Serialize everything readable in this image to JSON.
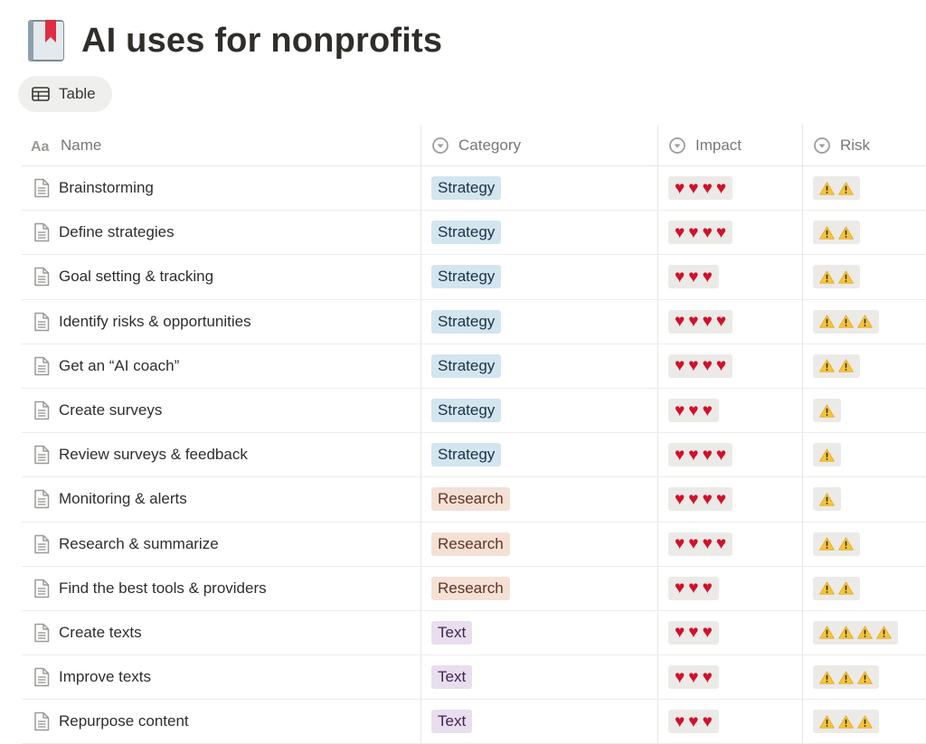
{
  "page": {
    "title": "AI uses for nonprofits",
    "icon": "book-bookmark-icon"
  },
  "views": [
    {
      "label": "Table",
      "icon": "table-icon"
    }
  ],
  "columns": {
    "name": {
      "label": "Name",
      "icon": "text-property-icon"
    },
    "category": {
      "label": "Category",
      "icon": "select-property-icon"
    },
    "impact": {
      "label": "Impact",
      "icon": "select-property-icon"
    },
    "risk": {
      "label": "Risk",
      "icon": "select-property-icon"
    }
  },
  "category_colors": {
    "Strategy": {
      "bg": "#d3e5ef",
      "fg": "#183347"
    },
    "Research": {
      "bg": "#f5e0d6",
      "fg": "#5d3424"
    },
    "Text": {
      "bg": "#e8deee",
      "fg": "#412454"
    }
  },
  "heart_color": "#d0112b",
  "rows": [
    {
      "name": "Brainstorming",
      "category": "Strategy",
      "impact": 4,
      "risk": 2
    },
    {
      "name": "Define strategies",
      "category": "Strategy",
      "impact": 4,
      "risk": 2
    },
    {
      "name": "Goal setting & tracking",
      "category": "Strategy",
      "impact": 3,
      "risk": 2
    },
    {
      "name": "Identify risks & opportunities",
      "category": "Strategy",
      "impact": 4,
      "risk": 3
    },
    {
      "name": "Get an “AI coach”",
      "category": "Strategy",
      "impact": 4,
      "risk": 2
    },
    {
      "name": "Create surveys",
      "category": "Strategy",
      "impact": 3,
      "risk": 1
    },
    {
      "name": "Review surveys & feedback",
      "category": "Strategy",
      "impact": 4,
      "risk": 1
    },
    {
      "name": "Monitoring & alerts",
      "category": "Research",
      "impact": 4,
      "risk": 1
    },
    {
      "name": "Research & summarize",
      "category": "Research",
      "impact": 4,
      "risk": 2
    },
    {
      "name": "Find the best tools & providers",
      "category": "Research",
      "impact": 3,
      "risk": 2
    },
    {
      "name": "Create texts",
      "category": "Text",
      "impact": 3,
      "risk": 4
    },
    {
      "name": "Improve texts",
      "category": "Text",
      "impact": 3,
      "risk": 3
    },
    {
      "name": "Repurpose content",
      "category": "Text",
      "impact": 3,
      "risk": 3
    }
  ]
}
